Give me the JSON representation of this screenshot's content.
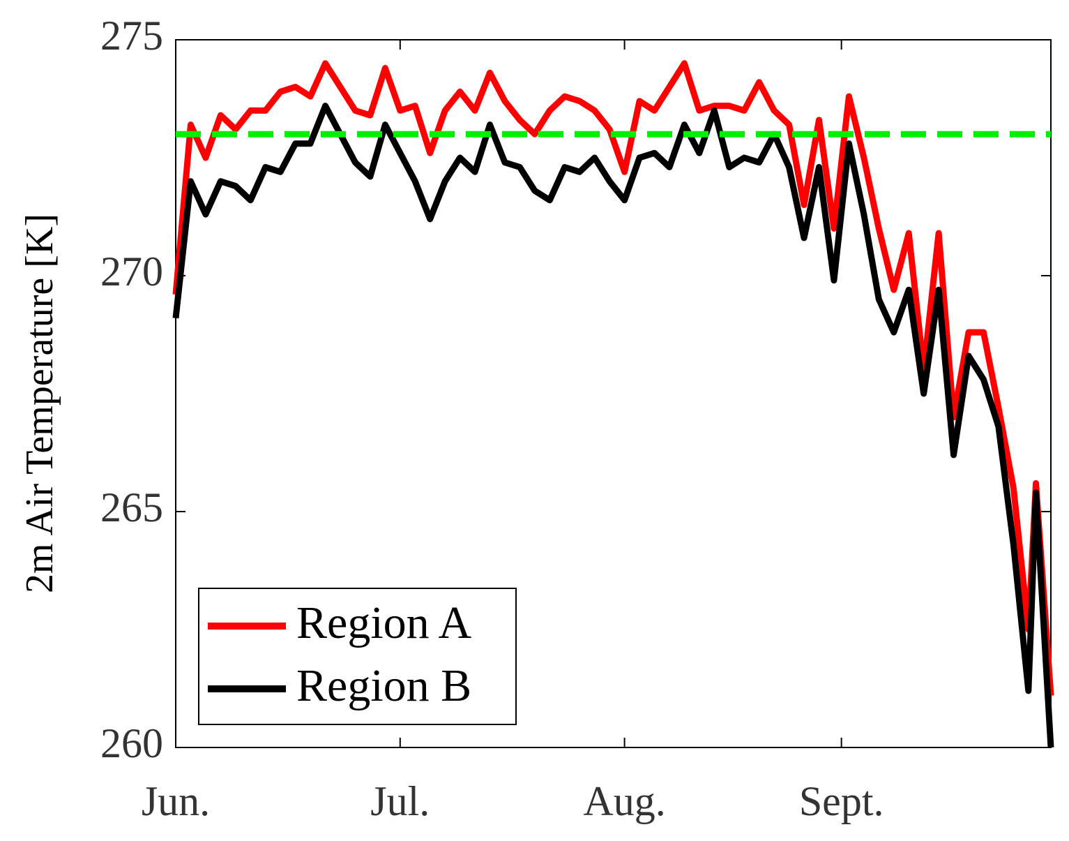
{
  "chart_data": {
    "type": "line",
    "y_label": "2m Air Temperature [K]",
    "x": [
      0,
      2,
      4,
      6,
      8,
      10,
      12,
      14,
      16,
      18,
      20,
      22,
      24,
      26,
      28,
      30,
      32,
      34,
      36,
      38,
      40,
      42,
      44,
      46,
      48,
      50,
      52,
      54,
      56,
      58,
      60,
      62,
      64,
      66,
      68,
      70,
      72,
      74,
      76,
      78,
      80,
      82,
      84,
      86,
      88,
      90,
      92,
      94,
      96,
      98,
      100,
      102,
      104,
      106,
      108,
      110,
      112,
      114,
      115,
      117
    ],
    "series": [
      {
        "name": "Region A",
        "color": "#ff0000",
        "values": [
          269.6,
          273.2,
          272.5,
          273.4,
          273.1,
          273.5,
          273.5,
          273.9,
          274.0,
          273.8,
          274.5,
          274.0,
          273.5,
          273.4,
          274.4,
          273.5,
          273.6,
          272.6,
          273.5,
          273.9,
          273.5,
          274.3,
          273.7,
          273.3,
          273.0,
          273.5,
          273.8,
          273.7,
          273.5,
          273.1,
          272.2,
          273.7,
          273.5,
          274.0,
          274.5,
          273.5,
          273.6,
          273.6,
          273.5,
          274.1,
          273.5,
          273.2,
          271.5,
          273.3,
          271.0,
          273.8,
          272.5,
          271.0,
          269.7,
          270.9,
          268.0,
          270.9,
          267.0,
          268.8,
          268.8,
          267.2,
          265.5,
          262.5,
          265.6,
          261.1
        ]
      },
      {
        "name": "Region B",
        "color": "#000000",
        "values": [
          269.1,
          272.0,
          271.3,
          272.0,
          271.9,
          271.6,
          272.3,
          272.2,
          272.8,
          272.8,
          273.6,
          273.0,
          272.4,
          272.1,
          273.2,
          272.6,
          272.0,
          271.2,
          272.0,
          272.5,
          272.2,
          273.2,
          272.4,
          272.3,
          271.8,
          271.6,
          272.3,
          272.2,
          272.5,
          272.0,
          271.6,
          272.5,
          272.6,
          272.3,
          273.2,
          272.6,
          273.5,
          272.3,
          272.5,
          272.4,
          273.0,
          272.3,
          270.8,
          272.3,
          269.9,
          272.8,
          271.3,
          269.5,
          268.8,
          269.7,
          267.5,
          269.7,
          266.2,
          268.3,
          267.8,
          266.8,
          264.3,
          261.2,
          265.4,
          260.0
        ]
      }
    ],
    "reference_line": {
      "y": 273,
      "color": "#00ee00",
      "style": "dashed"
    },
    "xlim": [
      0,
      117
    ],
    "xticks": [
      {
        "value": 0,
        "label": "Jun."
      },
      {
        "value": 30,
        "label": "Jul."
      },
      {
        "value": 60,
        "label": "Aug."
      },
      {
        "value": 89,
        "label": "Sept."
      }
    ],
    "ylim": [
      260,
      275
    ],
    "yticks": [
      260,
      265,
      270,
      275
    ],
    "legend": "lower left",
    "grid": false
  }
}
